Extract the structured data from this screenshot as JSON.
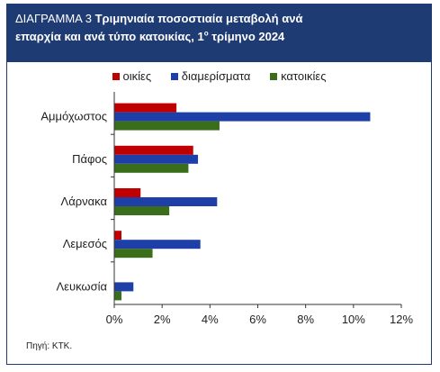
{
  "header": {
    "prefix": "ΔΙΑΓΡΑΜΜΑ 3",
    "title_line1": "Τριμηνιαία ποσοστιαία μεταβολή ανά",
    "title_line2": "επαρχία και ανά τύπο κατοικίας, 1",
    "title_sup": "ο",
    "title_line2_end": " τρίμηνο 2024"
  },
  "colors": {
    "header_bg": "#1f3b73",
    "oikies": "#c00000",
    "diamerismata": "#1f3fa8",
    "katoikies": "#3a6e1a"
  },
  "chart_data": {
    "type": "bar",
    "orientation": "horizontal",
    "categories": [
      "Αμμόχωστος",
      "Πάφος",
      "Λάρνακα",
      "Λεμεσός",
      "Λευκωσία"
    ],
    "series": [
      {
        "name": "οικίες",
        "values": [
          2.6,
          3.3,
          1.1,
          0.3,
          0.0
        ]
      },
      {
        "name": "διαμερίσματα",
        "values": [
          10.7,
          3.5,
          4.3,
          3.6,
          0.8
        ]
      },
      {
        "name": "κατοικίες",
        "values": [
          4.4,
          3.1,
          2.3,
          1.6,
          0.3
        ]
      }
    ],
    "xlim": [
      0,
      12
    ],
    "xticks": [
      0,
      2,
      4,
      6,
      8,
      10,
      12
    ],
    "xtick_labels": [
      "0%",
      "2%",
      "4%",
      "6%",
      "8%",
      "10%",
      "12%"
    ],
    "grid": false,
    "legend_position": "top"
  },
  "source": "Πηγή: ΚΤΚ."
}
